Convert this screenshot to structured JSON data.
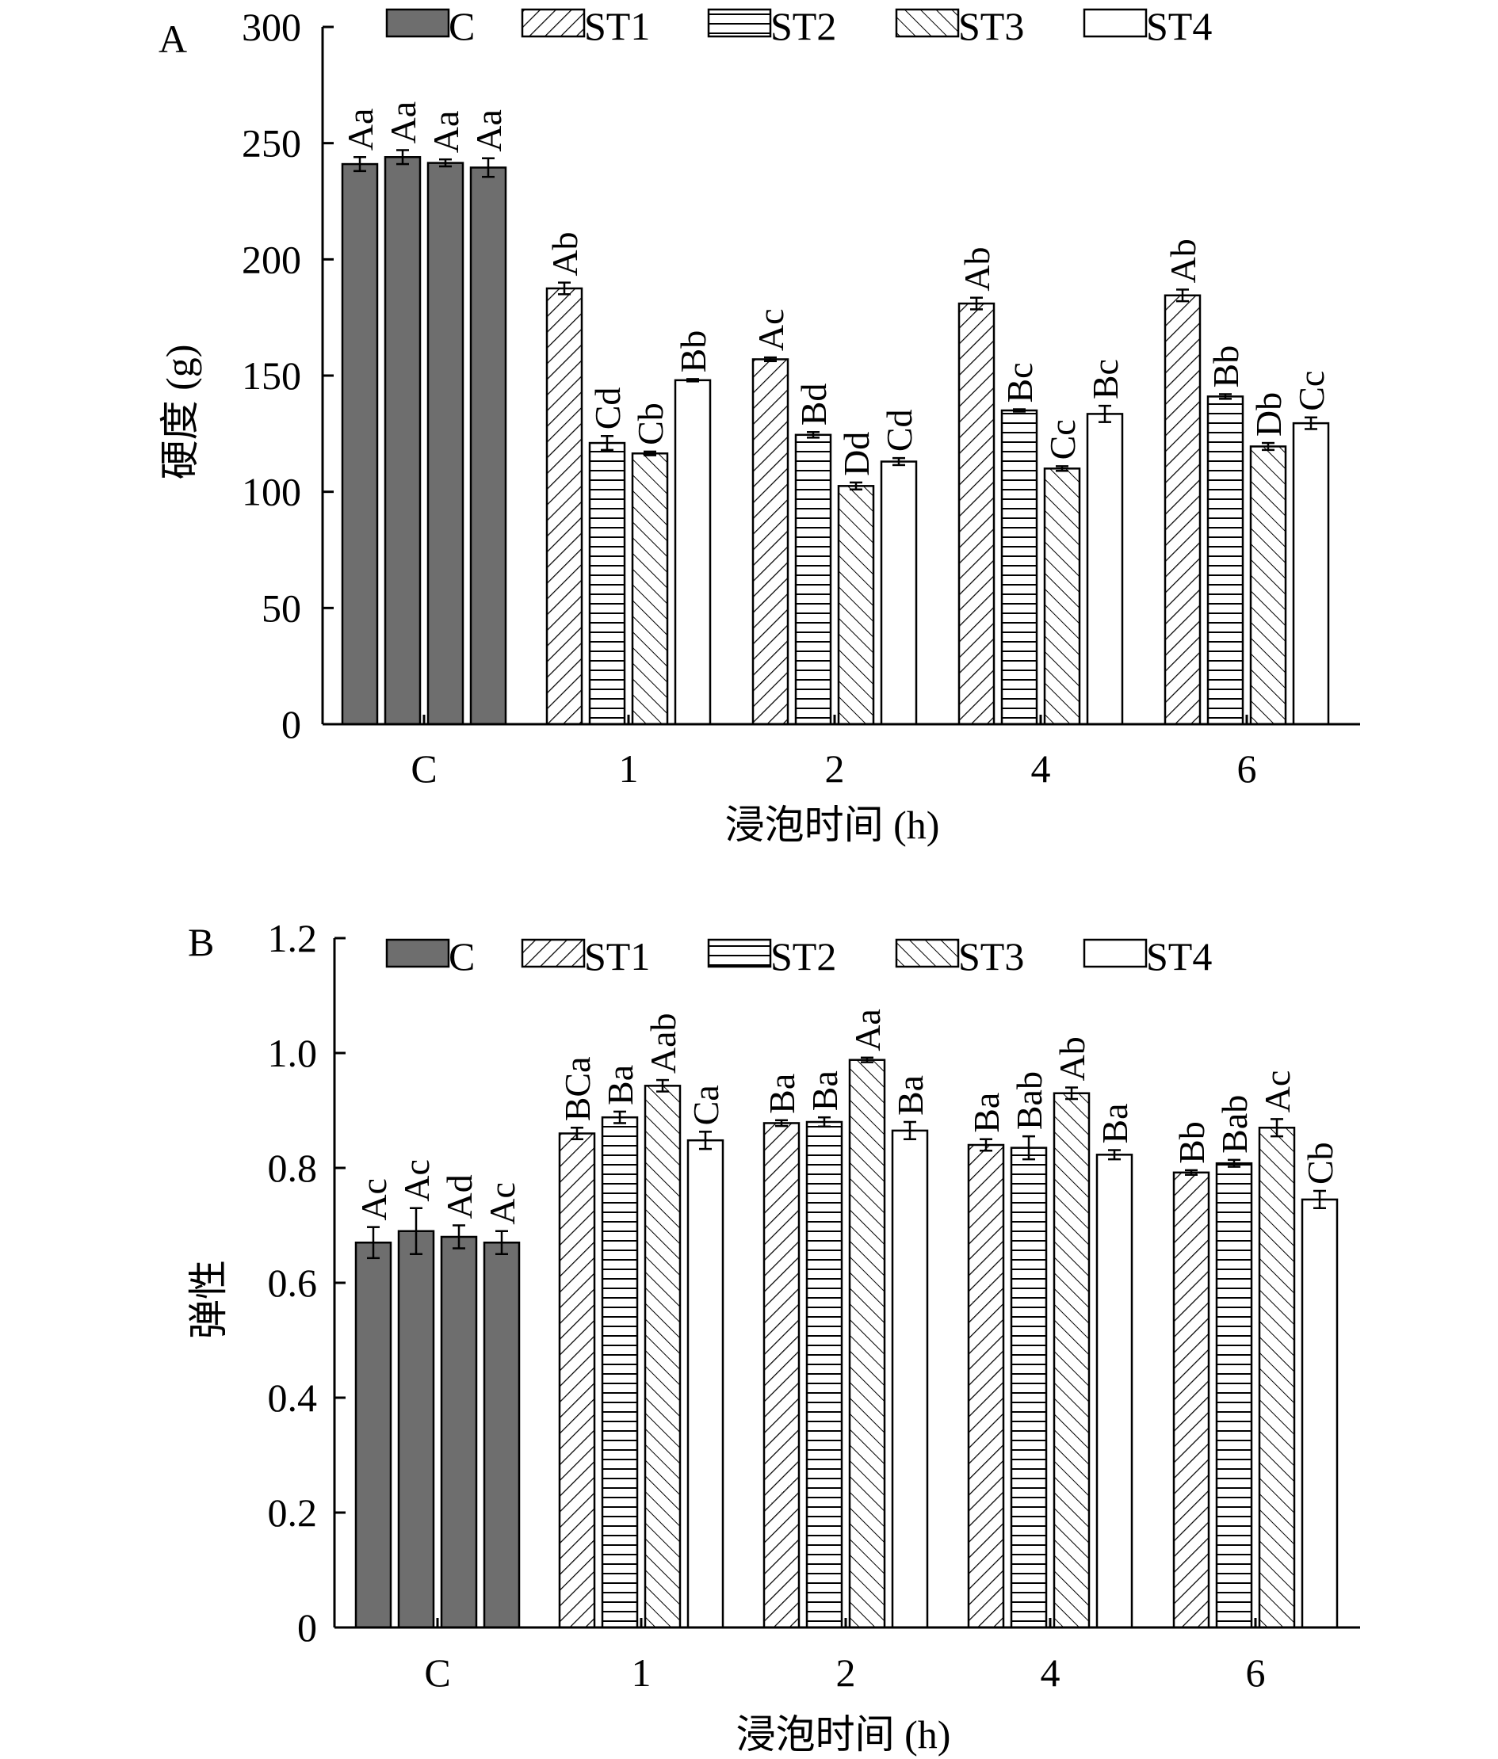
{
  "chart_data": [
    {
      "type": "bar",
      "panel": "A",
      "xlabel": "浸泡时间 (h)",
      "ylabel": "硬度 (g)",
      "ylim": [
        0,
        300
      ],
      "yticks": [
        "0",
        "50",
        "100",
        "150",
        "200",
        "250",
        "300"
      ],
      "categories": [
        "C",
        "1",
        "2",
        "4",
        "6"
      ],
      "legend": {
        "placement": "top",
        "entries": [
          {
            "name": "C",
            "fill": "solid-gray"
          },
          {
            "name": "ST1",
            "fill": "hatch-diagonal"
          },
          {
            "name": "ST2",
            "fill": "hatch-horizontal"
          },
          {
            "name": "ST3",
            "fill": "hatch-backdiagonal"
          },
          {
            "name": "ST4",
            "fill": "white"
          }
        ]
      },
      "groups": [
        {
          "category": "C",
          "bars": [
            {
              "fill": "solid-gray",
              "value": 241,
              "error": 3,
              "label": "Aa"
            },
            {
              "fill": "solid-gray",
              "value": 244,
              "error": 3,
              "label": "Aa"
            },
            {
              "fill": "solid-gray",
              "value": 241.5,
              "error": 1.5,
              "label": "Aa"
            },
            {
              "fill": "solid-gray",
              "value": 239.5,
              "error": 4,
              "label": "Aa"
            }
          ]
        },
        {
          "category": "1",
          "bars": [
            {
              "fill": "hatch-diagonal",
              "value": 187.5,
              "error": 2.5,
              "label": "Ab"
            },
            {
              "fill": "hatch-horizontal",
              "value": 121,
              "error": 3,
              "label": "Cd"
            },
            {
              "fill": "hatch-backdiagonal",
              "value": 116.5,
              "error": 0.8,
              "label": "Cb"
            },
            {
              "fill": "white",
              "value": 148,
              "error": 0.5,
              "label": "Bb"
            }
          ]
        },
        {
          "category": "2",
          "bars": [
            {
              "fill": "hatch-diagonal",
              "value": 157,
              "error": 0.8,
              "label": "Ac"
            },
            {
              "fill": "hatch-horizontal",
              "value": 124.5,
              "error": 1.2,
              "label": "Bd"
            },
            {
              "fill": "hatch-backdiagonal",
              "value": 102.5,
              "error": 1.5,
              "label": "Dd"
            },
            {
              "fill": "white",
              "value": 113,
              "error": 1.5,
              "label": "Cd"
            }
          ]
        },
        {
          "category": "4",
          "bars": [
            {
              "fill": "hatch-diagonal",
              "value": 181,
              "error": 2.5,
              "label": "Ab"
            },
            {
              "fill": "hatch-horizontal",
              "value": 135,
              "error": 0.5,
              "label": "Bc"
            },
            {
              "fill": "hatch-backdiagonal",
              "value": 110,
              "error": 1,
              "label": "Cc"
            },
            {
              "fill": "white",
              "value": 133.5,
              "error": 3.5,
              "label": "Bc"
            }
          ]
        },
        {
          "category": "6",
          "bars": [
            {
              "fill": "hatch-diagonal",
              "value": 184.5,
              "error": 2.5,
              "label": "Ab"
            },
            {
              "fill": "hatch-horizontal",
              "value": 141,
              "error": 1,
              "label": "Bb"
            },
            {
              "fill": "hatch-backdiagonal",
              "value": 119.5,
              "error": 1.5,
              "label": "Db"
            },
            {
              "fill": "white",
              "value": 129.5,
              "error": 2.5,
              "label": "Cc"
            }
          ]
        }
      ]
    },
    {
      "type": "bar",
      "panel": "B",
      "xlabel": "浸泡时间 (h)",
      "ylabel": "弹性",
      "ylim": [
        0,
        1.2
      ],
      "yticks": [
        "0",
        "0.2",
        "0.4",
        "0.6",
        "0.8",
        "1.0",
        "1.2"
      ],
      "categories": [
        "C",
        "1",
        "2",
        "4",
        "6"
      ],
      "legend": {
        "placement": "top",
        "entries": [
          {
            "name": "C",
            "fill": "solid-gray"
          },
          {
            "name": "ST1",
            "fill": "hatch-diagonal"
          },
          {
            "name": "ST2",
            "fill": "hatch-horizontal"
          },
          {
            "name": "ST3",
            "fill": "hatch-backdiagonal"
          },
          {
            "name": "ST4",
            "fill": "white"
          }
        ]
      },
      "groups": [
        {
          "category": "C",
          "bars": [
            {
              "fill": "solid-gray",
              "value": 0.67,
              "error": 0.027,
              "label": "Ac"
            },
            {
              "fill": "solid-gray",
              "value": 0.69,
              "error": 0.04,
              "label": "Ac"
            },
            {
              "fill": "solid-gray",
              "value": 0.68,
              "error": 0.02,
              "label": "Ad"
            },
            {
              "fill": "solid-gray",
              "value": 0.67,
              "error": 0.02,
              "label": "Ac"
            }
          ]
        },
        {
          "category": "1",
          "bars": [
            {
              "fill": "hatch-diagonal",
              "value": 0.86,
              "error": 0.01,
              "label": "BCa"
            },
            {
              "fill": "hatch-horizontal",
              "value": 0.888,
              "error": 0.01,
              "label": "Ba"
            },
            {
              "fill": "hatch-backdiagonal",
              "value": 0.943,
              "error": 0.01,
              "label": "Aab"
            },
            {
              "fill": "white",
              "value": 0.848,
              "error": 0.015,
              "label": "Ca"
            }
          ]
        },
        {
          "category": "2",
          "bars": [
            {
              "fill": "hatch-diagonal",
              "value": 0.878,
              "error": 0.005,
              "label": "Ba"
            },
            {
              "fill": "hatch-horizontal",
              "value": 0.88,
              "error": 0.008,
              "label": "Ba"
            },
            {
              "fill": "hatch-backdiagonal",
              "value": 0.988,
              "error": 0.004,
              "label": "Aa"
            },
            {
              "fill": "white",
              "value": 0.865,
              "error": 0.015,
              "label": "Ba"
            }
          ]
        },
        {
          "category": "4",
          "bars": [
            {
              "fill": "hatch-diagonal",
              "value": 0.84,
              "error": 0.01,
              "label": "Ba"
            },
            {
              "fill": "hatch-horizontal",
              "value": 0.835,
              "error": 0.02,
              "label": "Bab"
            },
            {
              "fill": "hatch-backdiagonal",
              "value": 0.93,
              "error": 0.01,
              "label": "Ab"
            },
            {
              "fill": "white",
              "value": 0.823,
              "error": 0.008,
              "label": "Ba"
            }
          ]
        },
        {
          "category": "6",
          "bars": [
            {
              "fill": "hatch-diagonal",
              "value": 0.792,
              "error": 0.004,
              "label": "Bb"
            },
            {
              "fill": "hatch-horizontal",
              "value": 0.808,
              "error": 0.006,
              "label": "Bab"
            },
            {
              "fill": "hatch-backdiagonal",
              "value": 0.87,
              "error": 0.015,
              "label": "Ac"
            },
            {
              "fill": "white",
              "value": 0.745,
              "error": 0.015,
              "label": "Cb"
            }
          ]
        }
      ]
    }
  ]
}
